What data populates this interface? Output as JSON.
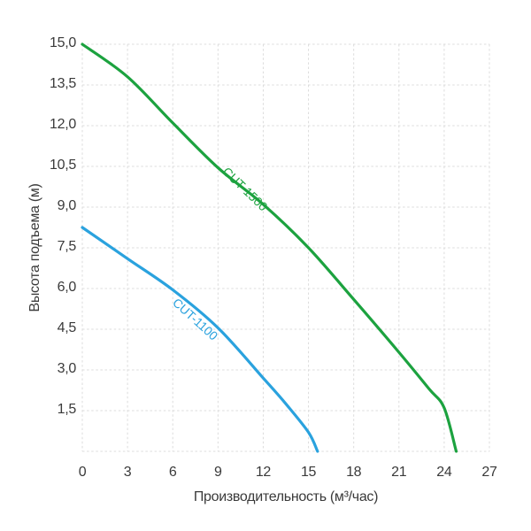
{
  "page": {
    "background": "#ffffff"
  },
  "chart_data": {
    "type": "line",
    "title": "",
    "xlabel": "Производительность (м³/час)",
    "ylabel": "Высота подъема (м)",
    "xlim": [
      0,
      27
    ],
    "ylim": [
      0,
      15
    ],
    "grid": "dashed",
    "grid_color": "#dcdcdc",
    "text_color": "#3a3a3a",
    "legend_position": "labels-on-curves",
    "x_ticks": [
      {
        "value": 0,
        "label": "0"
      },
      {
        "value": 3,
        "label": "3"
      },
      {
        "value": 6,
        "label": "6"
      },
      {
        "value": 9,
        "label": "9"
      },
      {
        "value": 12,
        "label": "12"
      },
      {
        "value": 15,
        "label": "15"
      },
      {
        "value": 18,
        "label": "18"
      },
      {
        "value": 21,
        "label": "21"
      },
      {
        "value": 24,
        "label": "24"
      },
      {
        "value": 27,
        "label": "27"
      }
    ],
    "y_ticks": [
      {
        "value": 1.5,
        "label": "1,5"
      },
      {
        "value": 3.0,
        "label": "3,0"
      },
      {
        "value": 4.5,
        "label": "4,5"
      },
      {
        "value": 6.0,
        "label": "6,0"
      },
      {
        "value": 7.5,
        "label": "7,5"
      },
      {
        "value": 9.0,
        "label": "9,0"
      },
      {
        "value": 10.5,
        "label": "10,5"
      },
      {
        "value": 12.0,
        "label": "12,0"
      },
      {
        "value": 13.5,
        "label": "13,5"
      },
      {
        "value": 15.0,
        "label": "15,0"
      }
    ],
    "series": [
      {
        "name": "CUT-1500",
        "color": "#1ca23f",
        "points": [
          [
            0,
            15.0
          ],
          [
            3,
            13.8
          ],
          [
            6,
            12.1
          ],
          [
            9,
            10.45
          ],
          [
            12,
            9.1
          ],
          [
            15,
            7.5
          ],
          [
            18,
            5.6
          ],
          [
            21,
            3.65
          ],
          [
            23,
            2.3
          ],
          [
            24,
            1.6
          ],
          [
            24.8,
            0
          ]
        ],
        "label": {
          "text": "CUT-1500",
          "x": 10.6,
          "y": 9.55,
          "rotation": 44
        }
      },
      {
        "name": "CUT-1100",
        "color": "#2aa2de",
        "points": [
          [
            0,
            8.25
          ],
          [
            3,
            7.1
          ],
          [
            6,
            5.95
          ],
          [
            9,
            4.55
          ],
          [
            12,
            2.7
          ],
          [
            13.5,
            1.75
          ],
          [
            15,
            0.7
          ],
          [
            15.6,
            0
          ]
        ],
        "label": {
          "text": "CUT-1100",
          "x": 7.3,
          "y": 4.75,
          "rotation": 42
        }
      }
    ]
  }
}
